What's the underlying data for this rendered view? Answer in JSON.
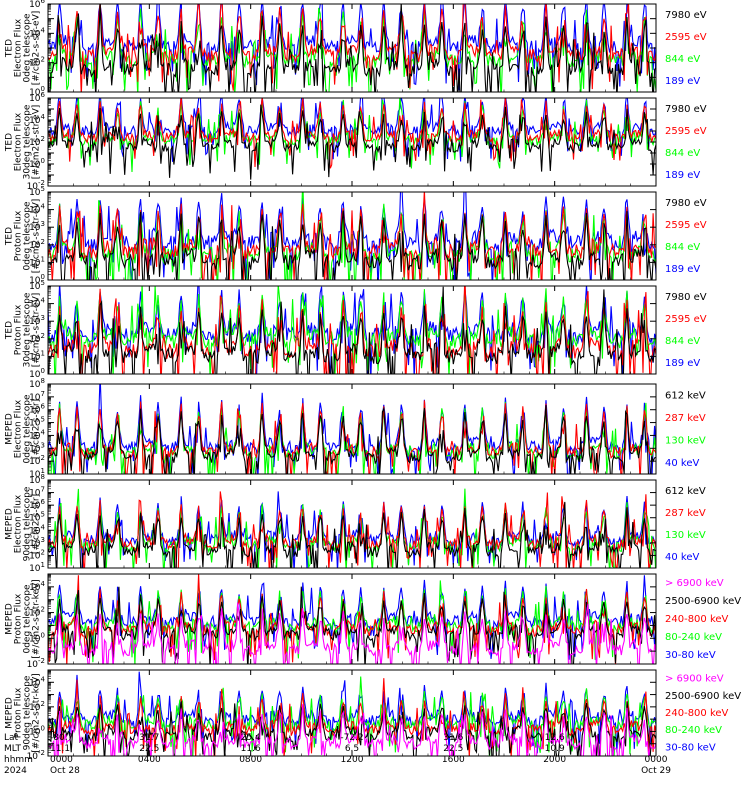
{
  "colors": {
    "blue": "#0000ff",
    "red": "#ff0000",
    "green": "#00ff00",
    "black": "#000000",
    "magenta": "#ff00ff"
  },
  "chart_data": [
    {
      "type": "line",
      "ylabel_lines": [
        "TED",
        "Electron Flux",
        "0deg telescope",
        "[#/cm2-s-str-eV]"
      ],
      "ylog": true,
      "ylim_exp": [
        0,
        6
      ],
      "y_tick_labels": [
        "10^0",
        "10^2",
        "10^4",
        "10^6"
      ],
      "base_exp": 1.5,
      "peak_exp": 3.0,
      "series": [
        {
          "name": "7980 eV",
          "color": "black",
          "offset_exp": 0.0
        },
        {
          "name": "2595 eV",
          "color": "red",
          "offset_exp": 1.0
        },
        {
          "name": "844 eV",
          "color": "green",
          "offset_exp": 0.6
        },
        {
          "name": "189 eV",
          "color": "blue",
          "offset_exp": 1.6
        }
      ]
    },
    {
      "type": "line",
      "ylabel_lines": [
        "TED",
        "Electron Flux",
        "30deg telescope",
        "[#/cm2-s-str-eV]"
      ],
      "ylog": true,
      "ylim_exp": [
        -2,
        6
      ],
      "y_tick_labels": [
        "10^-2",
        "10^0",
        "10^2",
        "10^4",
        "10^6"
      ],
      "base_exp": 1.5,
      "peak_exp": 3.0,
      "series": [
        {
          "name": "7980 eV",
          "color": "black",
          "offset_exp": 0.0
        },
        {
          "name": "2595 eV",
          "color": "red",
          "offset_exp": 0.9
        },
        {
          "name": "844 eV",
          "color": "green",
          "offset_exp": 0.6
        },
        {
          "name": "189 eV",
          "color": "blue",
          "offset_exp": 1.5
        }
      ]
    },
    {
      "type": "line",
      "ylabel_lines": [
        "TED",
        "Proton Flux",
        "0deg telescope",
        "[#/cm2-s-str-eV]"
      ],
      "ylog": true,
      "ylim_exp": [
        0,
        5
      ],
      "y_tick_labels": [
        "10^0",
        "10^1",
        "10^2",
        "10^3",
        "10^4",
        "10^5"
      ],
      "base_exp": 1.0,
      "peak_exp": 2.2,
      "series": [
        {
          "name": "7980 eV",
          "color": "black",
          "offset_exp": 0.0
        },
        {
          "name": "2595 eV",
          "color": "red",
          "offset_exp": 0.6
        },
        {
          "name": "844 eV",
          "color": "green",
          "offset_exp": 0.4
        },
        {
          "name": "189 eV",
          "color": "blue",
          "offset_exp": 1.1
        }
      ]
    },
    {
      "type": "line",
      "ylabel_lines": [
        "TED",
        "Proton Flux",
        "30deg telescope",
        "[#/cm2-s-str-eV]"
      ],
      "ylog": true,
      "ylim_exp": [
        0,
        5
      ],
      "y_tick_labels": [
        "10^0",
        "10^1",
        "10^2",
        "10^3",
        "10^4",
        "10^5"
      ],
      "base_exp": 1.0,
      "peak_exp": 2.2,
      "series": [
        {
          "name": "7980 eV",
          "color": "black",
          "offset_exp": 0.0
        },
        {
          "name": "2595 eV",
          "color": "red",
          "offset_exp": 0.3
        },
        {
          "name": "844 eV",
          "color": "green",
          "offset_exp": 0.9
        },
        {
          "name": "189 eV",
          "color": "blue",
          "offset_exp": 1.2
        }
      ]
    },
    {
      "type": "line",
      "ylabel_lines": [
        "MEPED",
        "Electron Flux",
        "0deg telescope",
        "[#/cm2-s-str]"
      ],
      "ylog": true,
      "ylim_exp": [
        1,
        8
      ],
      "y_tick_labels": [
        "10^1",
        "10^2",
        "10^3",
        "10^4",
        "10^5",
        "10^6",
        "10^7",
        "10^8"
      ],
      "base_exp": 2.3,
      "peak_exp": 3.3,
      "series": [
        {
          "name": "612 keV",
          "color": "black",
          "offset_exp": 0.0
        },
        {
          "name": "287 keV",
          "color": "red",
          "offset_exp": 0.4
        },
        {
          "name": "130 keV",
          "color": "green",
          "offset_exp": 0.3
        },
        {
          "name": "40 keV",
          "color": "blue",
          "offset_exp": 0.8
        }
      ]
    },
    {
      "type": "line",
      "ylabel_lines": [
        "MEPED",
        "Electron Flux",
        "90deg telescope",
        "[#/cm2-s-str]"
      ],
      "ylog": true,
      "ylim_exp": [
        1,
        8
      ],
      "y_tick_labels": [
        "10^1",
        "10^2",
        "10^3",
        "10^4",
        "10^5",
        "10^6",
        "10^7",
        "10^8"
      ],
      "base_exp": 2.3,
      "peak_exp": 2.8,
      "series": [
        {
          "name": "612 keV",
          "color": "black",
          "offset_exp": 0.0
        },
        {
          "name": "287 keV",
          "color": "red",
          "offset_exp": 0.6
        },
        {
          "name": "130 keV",
          "color": "green",
          "offset_exp": 0.4
        },
        {
          "name": "40 keV",
          "color": "blue",
          "offset_exp": 0.9
        }
      ]
    },
    {
      "type": "line",
      "ylabel_lines": [
        "MEPED",
        "Proton Flux",
        "0deg telescope",
        "[#/cm2-s-str-keV]"
      ],
      "ylog": true,
      "ylim_exp": [
        -2,
        5
      ],
      "y_tick_labels": [
        "10^-2",
        "10^0",
        "10^2",
        "10^4"
      ],
      "base_exp": 0.3,
      "peak_exp": 2.5,
      "series": [
        {
          "name": "> 6900 keV",
          "color": "magenta",
          "offset_exp": -1.2
        },
        {
          "name": "2500-6900 keV",
          "color": "black",
          "offset_exp": 0.0
        },
        {
          "name": "240-800 keV",
          "color": "red",
          "offset_exp": 0.3
        },
        {
          "name": "80-240 keV",
          "color": "green",
          "offset_exp": 0.6
        },
        {
          "name": "30-80 keV",
          "color": "blue",
          "offset_exp": 1.0
        }
      ]
    },
    {
      "type": "line",
      "ylabel_lines": [
        "MEPED",
        "Proton Flux",
        "90deg telescope",
        "[#/cm2-s-str-keV]"
      ],
      "ylog": true,
      "ylim_exp": [
        -2,
        5
      ],
      "y_tick_labels": [
        "10^-2",
        "10^0",
        "10^2",
        "10^4"
      ],
      "base_exp": -0.4,
      "peak_exp": 2.3,
      "series": [
        {
          "name": "> 6900 keV",
          "color": "magenta",
          "offset_exp": -0.6
        },
        {
          "name": "2500-6900 keV",
          "color": "black",
          "offset_exp": 0.0
        },
        {
          "name": "240-800 keV",
          "color": "red",
          "offset_exp": 0.5
        },
        {
          "name": "80-240 keV",
          "color": "green",
          "offset_exp": 0.9
        },
        {
          "name": "30-80 keV",
          "color": "blue",
          "offset_exp": 1.3
        }
      ]
    }
  ],
  "time_axis": {
    "row_labels": [
      "Lat",
      "MLT",
      "hhmm",
      "2024"
    ],
    "columns": [
      {
        "lat": "-80.7",
        "mlt": "11.1",
        "hhmm": "0000",
        "date": "Oct 28"
      },
      {
        "lat": "31.7",
        "mlt": "22.5",
        "hhmm": "0400",
        "date": ""
      },
      {
        "lat": "25.4",
        "mlt": "11.6",
        "hhmm": "0800",
        "date": ""
      },
      {
        "lat": "-72.2",
        "mlt": "6.5",
        "hhmm": "1200",
        "date": ""
      },
      {
        "lat": "31.6",
        "mlt": "22.5",
        "hhmm": "1600",
        "date": ""
      },
      {
        "lat": "12.6",
        "mlt": "10.9",
        "hhmm": "2000",
        "date": ""
      },
      {
        "lat": "",
        "mlt": "",
        "hhmm": "0000",
        "date": "Oct 29"
      }
    ]
  }
}
